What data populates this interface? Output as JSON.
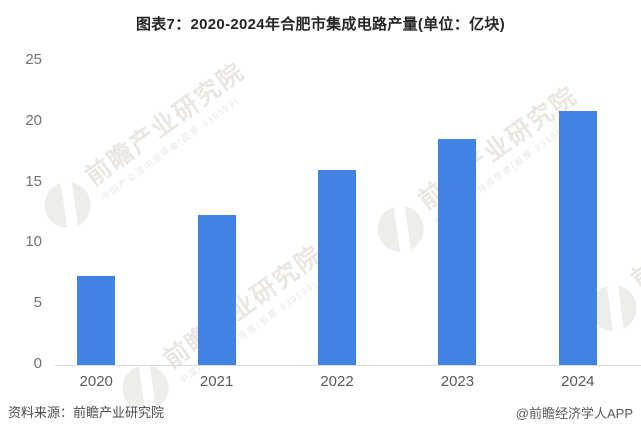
{
  "title": "图表7：2020-2024年合肥市集成电路产量(单位：亿块)",
  "chart_data": {
    "type": "bar",
    "title": "图表7：2020-2024年合肥市集成电路产量(单位：亿块)",
    "categories": [
      "2020",
      "2021",
      "2022",
      "2023",
      "2024"
    ],
    "values": [
      7.3,
      12.3,
      16.0,
      18.5,
      20.8
    ],
    "series_name": "合肥市集成电路产量",
    "unit": "亿块",
    "xlabel": "",
    "ylabel": "",
    "ylim": [
      0,
      25
    ],
    "yticks": [
      0,
      5,
      10,
      15,
      20,
      25
    ],
    "grid": false,
    "legend_position": "none",
    "bar_color": "#4183e3"
  },
  "watermark": {
    "logo": "qianzhan-logo",
    "main": "前瞻产业研究院",
    "sub": "中国产业咨询领导者(股票·839599)"
  },
  "footer": {
    "source": "资料来源：前瞻产业研究院",
    "credit": "@前瞻经济学人APP"
  },
  "colors": {
    "bar": "#4183e3",
    "axis_line": "#d9d9d9",
    "y_tick_label": "#737373",
    "x_tick_label": "#595959",
    "title": "#262626",
    "footer": "#4d4d4d",
    "watermark": "#eae7e3",
    "background": "#ffffff"
  }
}
